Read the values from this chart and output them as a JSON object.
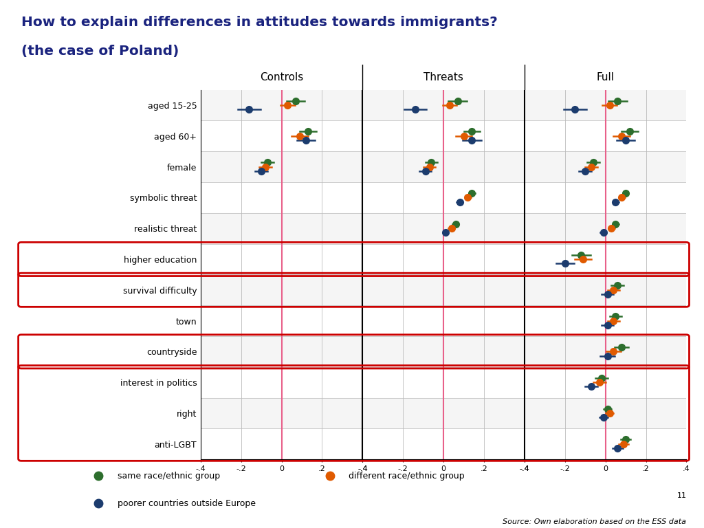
{
  "title_line1": "How to explain differences in attitudes towards immigrants?",
  "title_line2": "(the case of Poland)",
  "col_headers": [
    "Controls",
    "Threats",
    "Full"
  ],
  "row_labels": [
    "aged 15-25",
    "aged 60+",
    "female",
    "symbolic threat",
    "realistic threat",
    "higher education",
    "survival difficulty",
    "town",
    "countryside",
    "interest in politics",
    "right",
    "anti-LGBT"
  ],
  "colors": {
    "green": "#2d6e2d",
    "orange": "#e05a00",
    "blue": "#1c3c6e"
  },
  "header_bg": "#d6cc96",
  "grid_color": "#bbbbbb",
  "red_box_color": "#cc0000",
  "pink_line_color": "#e8608a",
  "data": {
    "Controls": {
      "aged 15-25": {
        "green": [
          0.07,
          0.045
        ],
        "orange": [
          0.03,
          0.035
        ],
        "blue": [
          -0.16,
          0.055
        ]
      },
      "aged 60+": {
        "green": [
          0.13,
          0.04
        ],
        "orange": [
          0.09,
          0.04
        ],
        "blue": [
          0.12,
          0.045
        ]
      },
      "female": {
        "green": [
          -0.07,
          0.03
        ],
        "orange": [
          -0.08,
          0.03
        ],
        "blue": [
          -0.1,
          0.03
        ]
      },
      "symbolic threat": {
        "green": null,
        "orange": null,
        "blue": null
      },
      "realistic threat": {
        "green": null,
        "orange": null,
        "blue": null
      },
      "higher education": {
        "green": null,
        "orange": null,
        "blue": null
      },
      "survival difficulty": {
        "green": null,
        "orange": null,
        "blue": null
      },
      "town": {
        "green": null,
        "orange": null,
        "blue": null
      },
      "countryside": {
        "green": null,
        "orange": null,
        "blue": null
      },
      "interest in politics": {
        "green": null,
        "orange": null,
        "blue": null
      },
      "right": {
        "green": null,
        "orange": null,
        "blue": null
      },
      "anti-LGBT": {
        "green": null,
        "orange": null,
        "blue": null
      }
    },
    "Threats": {
      "aged 15-25": {
        "green": [
          0.07,
          0.045
        ],
        "orange": [
          0.03,
          0.035
        ],
        "blue": [
          -0.14,
          0.055
        ]
      },
      "aged 60+": {
        "green": [
          0.14,
          0.04
        ],
        "orange": [
          0.1,
          0.04
        ],
        "blue": [
          0.14,
          0.045
        ]
      },
      "female": {
        "green": [
          -0.06,
          0.03
        ],
        "orange": [
          -0.07,
          0.03
        ],
        "blue": [
          -0.09,
          0.03
        ]
      },
      "symbolic threat": {
        "green": [
          0.14,
          0.015
        ],
        "orange": [
          0.12,
          0.015
        ],
        "blue": [
          0.08,
          0.015
        ]
      },
      "realistic threat": {
        "green": [
          0.06,
          0.015
        ],
        "orange": [
          0.04,
          0.015
        ],
        "blue": [
          0.01,
          0.015
        ]
      },
      "higher education": {
        "green": null,
        "orange": null,
        "blue": null
      },
      "survival difficulty": {
        "green": null,
        "orange": null,
        "blue": null
      },
      "town": {
        "green": null,
        "orange": null,
        "blue": null
      },
      "countryside": {
        "green": null,
        "orange": null,
        "blue": null
      },
      "interest in politics": {
        "green": null,
        "orange": null,
        "blue": null
      },
      "right": {
        "green": null,
        "orange": null,
        "blue": null
      },
      "anti-LGBT": {
        "green": null,
        "orange": null,
        "blue": null
      }
    },
    "Full": {
      "aged 15-25": {
        "green": [
          0.06,
          0.045
        ],
        "orange": [
          0.02,
          0.035
        ],
        "blue": [
          -0.15,
          0.055
        ]
      },
      "aged 60+": {
        "green": [
          0.12,
          0.04
        ],
        "orange": [
          0.08,
          0.04
        ],
        "blue": [
          0.1,
          0.045
        ]
      },
      "female": {
        "green": [
          -0.06,
          0.03
        ],
        "orange": [
          -0.07,
          0.03
        ],
        "blue": [
          -0.1,
          0.03
        ]
      },
      "symbolic threat": {
        "green": [
          0.1,
          0.015
        ],
        "orange": [
          0.08,
          0.015
        ],
        "blue": [
          0.05,
          0.015
        ]
      },
      "realistic threat": {
        "green": [
          0.05,
          0.015
        ],
        "orange": [
          0.03,
          0.015
        ],
        "blue": [
          -0.01,
          0.015
        ]
      },
      "higher education": {
        "green": [
          -0.12,
          0.045
        ],
        "orange": [
          -0.11,
          0.04
        ],
        "blue": [
          -0.2,
          0.045
        ]
      },
      "survival difficulty": {
        "green": [
          0.06,
          0.03
        ],
        "orange": [
          0.04,
          0.03
        ],
        "blue": [
          0.01,
          0.03
        ]
      },
      "town": {
        "green": [
          0.05,
          0.03
        ],
        "orange": [
          0.04,
          0.03
        ],
        "blue": [
          0.01,
          0.03
        ]
      },
      "countryside": {
        "green": [
          0.08,
          0.035
        ],
        "orange": [
          0.04,
          0.035
        ],
        "blue": [
          0.01,
          0.035
        ]
      },
      "interest in politics": {
        "green": [
          -0.02,
          0.03
        ],
        "orange": [
          -0.03,
          0.03
        ],
        "blue": [
          -0.07,
          0.03
        ]
      },
      "right": {
        "green": [
          0.01,
          0.02
        ],
        "orange": [
          0.02,
          0.02
        ],
        "blue": [
          -0.01,
          0.02
        ]
      },
      "anti-LGBT": {
        "green": [
          0.1,
          0.025
        ],
        "orange": [
          0.09,
          0.025
        ],
        "blue": [
          0.06,
          0.025
        ]
      }
    }
  },
  "red_box_groups": [
    [
      5
    ],
    [
      6
    ],
    [
      8
    ],
    [
      9,
      10,
      11
    ]
  ],
  "source_text": "Source: Own elaboration based on the ESS data",
  "page_number": "11"
}
